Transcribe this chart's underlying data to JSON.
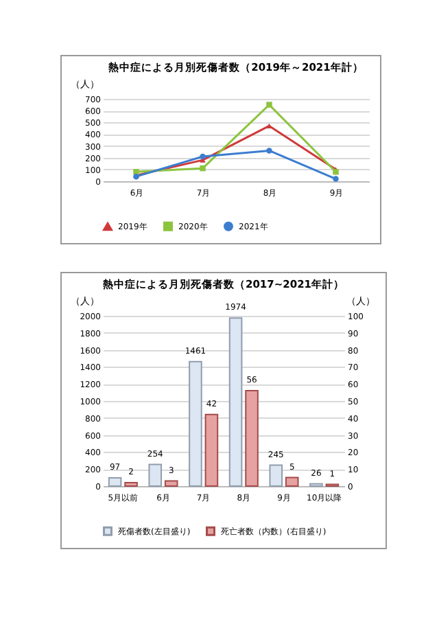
{
  "chart_data": [
    {
      "type": "line",
      "title": "熱中症による月別死傷者数（2019年～2021年計）",
      "ylabel": "（人）",
      "categories": [
        "6月",
        "7月",
        "8月",
        "9月"
      ],
      "ylim": [
        0,
        700
      ],
      "yticks": [
        0,
        100,
        200,
        300,
        400,
        500,
        600,
        700
      ],
      "grid": "y",
      "legend": "bottom",
      "series": [
        {
          "name": "2019年",
          "color": "#d0393a",
          "marker": "triangle",
          "values": [
            50,
            180,
            470,
            100
          ]
        },
        {
          "name": "2020年",
          "color": "#8dc43f",
          "marker": "square",
          "values": [
            80,
            110,
            650,
            80
          ]
        },
        {
          "name": "2021年",
          "color": "#3c7dcf",
          "marker": "circle",
          "values": [
            40,
            210,
            260,
            20
          ]
        }
      ]
    },
    {
      "type": "bar",
      "title": "熱中症による月別死傷者数（2017~2021年計）",
      "ylabel": "（人）",
      "y2label": "（人）",
      "categories": [
        "5月以前",
        "6月",
        "7月",
        "8月",
        "9月",
        "10月以降"
      ],
      "ylim": [
        0,
        2000
      ],
      "yticks": [
        0,
        200,
        400,
        600,
        800,
        1000,
        1200,
        1400,
        1600,
        1800,
        2000
      ],
      "y2lim": [
        0,
        100
      ],
      "y2ticks": [
        0,
        10,
        20,
        30,
        40,
        50,
        60,
        70,
        80,
        90,
        100
      ],
      "grid": "y",
      "legend": "bottom",
      "data_labels": true,
      "series": [
        {
          "name": "死傷者数(左目盛り)",
          "color": "#dce6f2",
          "values": [
            97,
            254,
            1461,
            1974,
            245,
            26
          ]
        },
        {
          "name": "死亡者数（内数）(右目盛り)",
          "color": "#e6a1a1",
          "axis": "y2",
          "values": [
            2,
            3,
            42,
            56,
            5,
            1
          ]
        }
      ]
    }
  ]
}
